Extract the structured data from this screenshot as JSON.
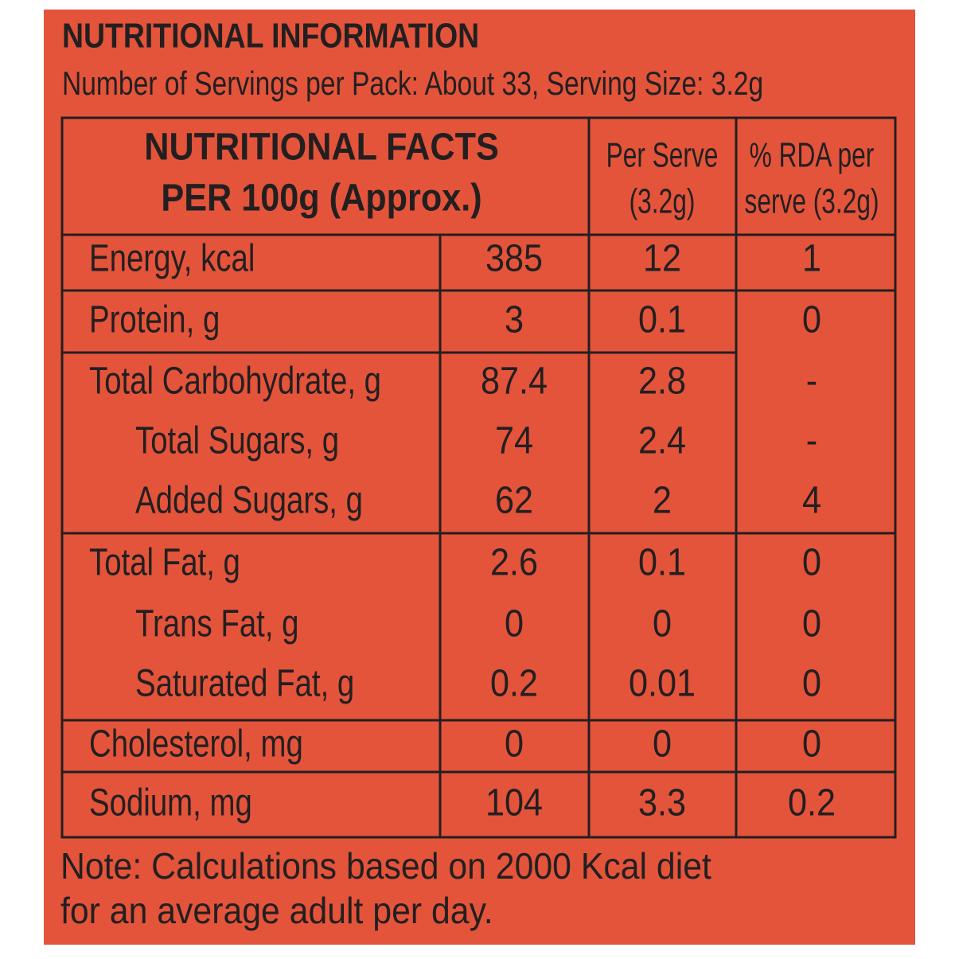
{
  "header": {
    "title": "NUTRITIONAL INFORMATION",
    "subtitle": "Number of Servings per Pack: About 33, Serving Size: 3.2g"
  },
  "table": {
    "columns": [
      [
        "NUTRITIONAL FACTS",
        "PER 100g (Approx.)"
      ],
      [
        "Per Serve",
        "(3.2g)"
      ],
      [
        "% RDA per",
        "serve (3.2g)"
      ]
    ],
    "rows": [
      [
        "Energy, kcal",
        "385",
        "12",
        "1"
      ],
      [
        "Protein, g",
        "3",
        "0.1",
        "0"
      ],
      [
        "Total Carbohydrate, g",
        "87.4",
        "2.8",
        "-"
      ],
      [
        "Total Sugars, g",
        "74",
        "2.4",
        "-"
      ],
      [
        "Added Sugars, g",
        "62",
        "2",
        "4"
      ],
      [
        "Total Fat, g",
        "2.6",
        "0.1",
        "0"
      ],
      [
        "Trans Fat, g",
        "0",
        "0",
        "0"
      ],
      [
        "Saturated Fat, g",
        "0.2",
        "0.01",
        "0"
      ],
      [
        "Cholesterol, mg",
        "0",
        "0",
        "0"
      ],
      [
        "Sodium, mg",
        "104",
        "3.3",
        "0.2"
      ]
    ]
  },
  "note": [
    "Note: Calculations based on 2000 Kcal diet",
    "for an average adult per day."
  ]
}
